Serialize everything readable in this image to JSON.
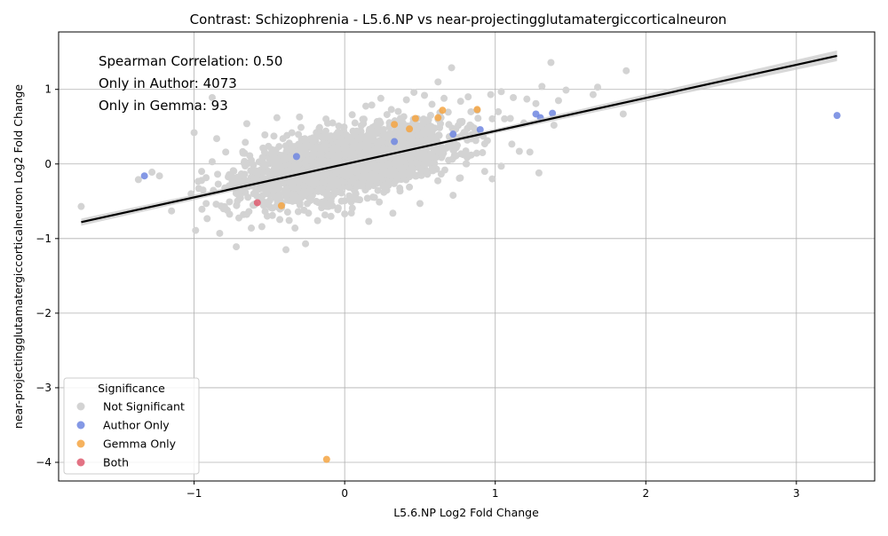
{
  "chart_data": {
    "type": "scatter",
    "title": "Contrast: Schizophrenia - L5.6.NP vs near-projectingglutamatergiccorticalneuron",
    "xlabel": "L5.6.NP Log2 Fold Change",
    "ylabel": "near-projectingglutamatergiccorticalneuron Log2 Fold Change",
    "xlim": [
      -1.9,
      3.52
    ],
    "ylim": [
      -4.25,
      1.77
    ],
    "xticks": [
      -1,
      0,
      1,
      2,
      3
    ],
    "yticks": [
      -4,
      -3,
      -2,
      -1,
      0,
      1
    ],
    "grid": true,
    "legend": {
      "title": "Significance",
      "placement": "lower-left"
    },
    "annotations": [
      "Spearman Correlation: 0.50",
      "Only in Author: 4073",
      "Only in Gemma: 93"
    ],
    "regression_line": {
      "x": [
        -1.75,
        3.27
      ],
      "y": [
        -0.78,
        1.45
      ]
    },
    "colors": {
      "not_significant": "#d3d3d3",
      "author_only": "#6f86e0",
      "gemma_only": "#f5a442",
      "both": "#de5a6e",
      "line": "#000000",
      "band": "#c8c8c8"
    },
    "series": [
      {
        "name": "Not Significant",
        "color": "#d3d3d3",
        "points": [
          [
            -1.75,
            -0.57
          ],
          [
            -1.37,
            -0.21
          ],
          [
            -1.28,
            -0.11
          ],
          [
            -1.23,
            -0.16
          ],
          [
            -1.15,
            -0.63
          ],
          [
            -1.0,
            0.42
          ],
          [
            -0.99,
            -0.89
          ],
          [
            -0.88,
            0.89
          ],
          [
            -0.85,
            0.34
          ],
          [
            -0.83,
            -0.93
          ],
          [
            -0.72,
            -1.11
          ],
          [
            -0.65,
            0.54
          ],
          [
            -0.39,
            -1.15
          ],
          [
            -0.26,
            -1.07
          ],
          [
            -0.45,
            0.62
          ],
          [
            -0.3,
            0.63
          ],
          [
            0.18,
            0.79
          ],
          [
            0.24,
            0.88
          ],
          [
            0.46,
            0.96
          ],
          [
            0.53,
            0.92
          ],
          [
            0.62,
            1.1
          ],
          [
            0.71,
            1.29
          ],
          [
            0.82,
            0.9
          ],
          [
            0.88,
            0.72
          ],
          [
            0.97,
            0.93
          ],
          [
            1.04,
            0.97
          ],
          [
            1.12,
            0.89
          ],
          [
            1.21,
            0.87
          ],
          [
            1.27,
            0.81
          ],
          [
            1.31,
            1.04
          ],
          [
            1.37,
            1.36
          ],
          [
            1.42,
            0.85
          ],
          [
            1.47,
            0.99
          ],
          [
            1.65,
            0.93
          ],
          [
            1.68,
            1.03
          ],
          [
            1.85,
            0.67
          ],
          [
            1.87,
            1.25
          ],
          [
            1.29,
            -0.12
          ],
          [
            1.04,
            -0.03
          ],
          [
            0.98,
            -0.2
          ],
          [
            0.93,
            -0.1
          ],
          [
            1.16,
            0.17
          ],
          [
            1.23,
            0.16
          ],
          [
            1.39,
            0.52
          ],
          [
            1.19,
            0.55
          ],
          [
            0.72,
            -0.42
          ],
          [
            0.5,
            -0.53
          ],
          [
            0.32,
            -0.66
          ],
          [
            0.16,
            -0.77
          ],
          [
            0.0,
            -0.67
          ],
          [
            -0.18,
            -0.76
          ],
          [
            -0.33,
            -0.86
          ],
          [
            -0.55,
            -0.84
          ],
          [
            -0.62,
            -0.86
          ],
          [
            -0.78,
            -0.62
          ],
          [
            -0.92,
            -0.53
          ],
          [
            -1.02,
            -0.4
          ],
          [
            -0.95,
            -0.1
          ],
          [
            -0.88,
            0.03
          ],
          [
            -0.79,
            0.16
          ],
          [
            -0.66,
            0.29
          ],
          [
            -0.53,
            0.39
          ],
          [
            -0.41,
            0.34
          ],
          [
            -0.29,
            0.49
          ],
          [
            -0.08,
            0.55
          ],
          [
            0.05,
            0.66
          ],
          [
            0.12,
            0.6
          ],
          [
            0.31,
            0.73
          ],
          [
            0.41,
            0.86
          ],
          [
            0.58,
            0.8
          ],
          [
            0.66,
            0.88
          ],
          [
            0.77,
            0.84
          ],
          [
            1.02,
            0.7
          ],
          [
            1.1,
            0.61
          ],
          [
            0.93,
            0.27
          ],
          [
            0.84,
            0.12
          ],
          [
            0.69,
            0.05
          ],
          [
            0.55,
            -0.13
          ],
          [
            0.43,
            -0.31
          ],
          [
            0.26,
            -0.38
          ],
          [
            0.1,
            -0.48
          ],
          [
            -0.12,
            -0.57
          ],
          [
            -0.27,
            -0.62
          ],
          [
            -0.48,
            -0.69
          ],
          [
            -0.6,
            -0.55
          ],
          [
            -0.7,
            -0.43
          ],
          [
            -0.84,
            -0.27
          ],
          [
            -0.74,
            -0.09
          ],
          [
            -0.62,
            0.05
          ],
          [
            -0.48,
            0.14
          ],
          [
            -0.35,
            0.2
          ],
          [
            -0.21,
            0.31
          ],
          [
            -0.05,
            0.37
          ],
          [
            0.08,
            0.44
          ],
          [
            0.21,
            0.52
          ],
          [
            0.37,
            0.61
          ],
          [
            0.52,
            0.55
          ],
          [
            0.64,
            0.62
          ],
          [
            0.78,
            0.57
          ],
          [
            0.86,
            0.48
          ]
        ]
      },
      {
        "name": "Author Only",
        "color": "#6f86e0",
        "points": [
          [
            -1.33,
            -0.16
          ],
          [
            3.27,
            0.65
          ],
          [
            1.27,
            0.67
          ],
          [
            1.38,
            0.68
          ],
          [
            1.3,
            0.62
          ],
          [
            0.9,
            0.46
          ],
          [
            0.72,
            0.4
          ],
          [
            0.33,
            0.3
          ],
          [
            -0.32,
            0.1
          ]
        ]
      },
      {
        "name": "Gemma Only",
        "color": "#f5a442",
        "points": [
          [
            -0.12,
            -3.96
          ],
          [
            0.47,
            0.61
          ],
          [
            0.62,
            0.62
          ],
          [
            0.65,
            0.72
          ],
          [
            0.88,
            0.73
          ],
          [
            0.43,
            0.47
          ],
          [
            -0.42,
            -0.56
          ],
          [
            0.33,
            0.53
          ]
        ]
      },
      {
        "name": "Both",
        "color": "#de5a6e",
        "points": [
          [
            -0.58,
            -0.52
          ]
        ]
      }
    ]
  }
}
